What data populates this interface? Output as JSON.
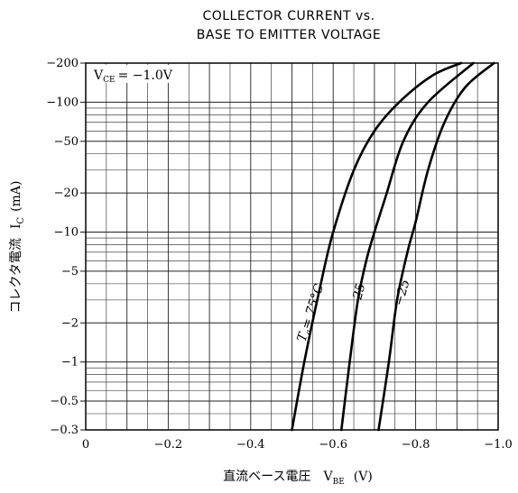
{
  "chart_data": {
    "type": "line",
    "title": "COLLECTOR CURRENT vs.",
    "subtitle": "BASE TO EMITTER VOLTAGE",
    "xlabel": "直流ベース電圧",
    "xlabel_symbol": "V",
    "xlabel_sub": "BE",
    "xlabel_unit": "(V)",
    "ylabel": "コレクタ電流",
    "ylabel_symbol": "I",
    "ylabel_sub": "C",
    "ylabel_unit": "(mA)",
    "condition": {
      "symbol": "V",
      "sub": "CE",
      "value": "= −1.0V"
    },
    "xlim": [
      0,
      -1.0
    ],
    "ylim": [
      0.3,
      200
    ],
    "yscale": "log",
    "grid": true,
    "xticks": [
      {
        "value": 0,
        "label": "0"
      },
      {
        "value": -0.2,
        "label": "−0.2"
      },
      {
        "value": -0.4,
        "label": "−0.4"
      },
      {
        "value": -0.6,
        "label": "−0.6"
      },
      {
        "value": -0.8,
        "label": "−0.8"
      },
      {
        "value": -1.0,
        "label": "−1.0"
      }
    ],
    "yticks": [
      {
        "value": 200,
        "label": "−200"
      },
      {
        "value": 100,
        "label": "−100"
      },
      {
        "value": 50,
        "label": "−50"
      },
      {
        "value": 20,
        "label": "−20"
      },
      {
        "value": 10,
        "label": "−10"
      },
      {
        "value": 5,
        "label": "−5"
      },
      {
        "value": 2,
        "label": "−2"
      },
      {
        "value": 1,
        "label": "−1"
      },
      {
        "value": 0.5,
        "label": "−0.5"
      },
      {
        "value": 0.3,
        "label": "−0.3"
      }
    ],
    "series": [
      {
        "name": "75°C",
        "label_prefix": "T",
        "label_sub": "a",
        "label_suffix": "= 75°C",
        "points": [
          [
            -0.5,
            0.3
          ],
          [
            -0.53,
            1
          ],
          [
            -0.57,
            4
          ],
          [
            -0.6,
            10
          ],
          [
            -0.65,
            30
          ],
          [
            -0.7,
            60
          ],
          [
            -0.76,
            100
          ],
          [
            -0.84,
            160
          ],
          [
            -0.91,
            200
          ]
        ]
      },
      {
        "name": "25",
        "label": "25",
        "points": [
          [
            -0.62,
            0.3
          ],
          [
            -0.64,
            1
          ],
          [
            -0.66,
            3
          ],
          [
            -0.68,
            6
          ],
          [
            -0.7,
            10
          ],
          [
            -0.73,
            20
          ],
          [
            -0.77,
            50
          ],
          [
            -0.83,
            100
          ],
          [
            -0.94,
            200
          ]
        ]
      },
      {
        "name": "−25",
        "label": "−25",
        "points": [
          [
            -0.71,
            0.3
          ],
          [
            -0.735,
            1
          ],
          [
            -0.755,
            3
          ],
          [
            -0.78,
            7
          ],
          [
            -0.8,
            12
          ],
          [
            -0.83,
            30
          ],
          [
            -0.87,
            70
          ],
          [
            -0.92,
            130
          ],
          [
            -0.99,
            200
          ]
        ]
      }
    ]
  }
}
